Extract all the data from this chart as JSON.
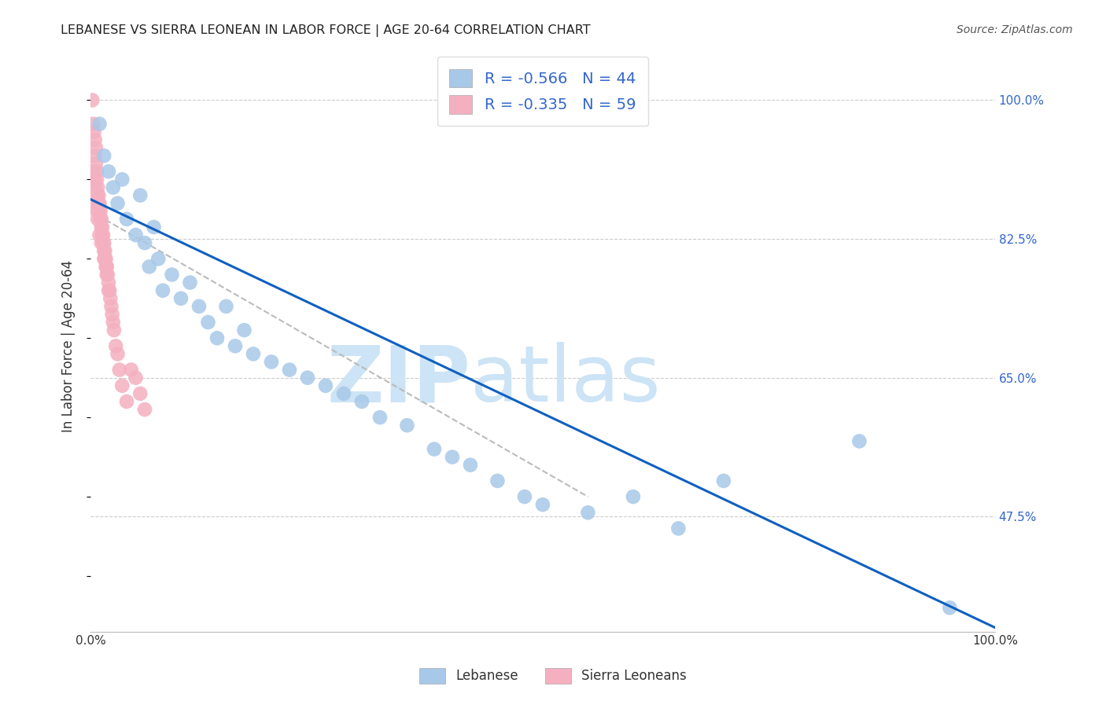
{
  "title": "LEBANESE VS SIERRA LEONEAN IN LABOR FORCE | AGE 20-64 CORRELATION CHART",
  "source": "Source: ZipAtlas.com",
  "ylabel": "In Labor Force | Age 20-64",
  "xlim": [
    0.0,
    1.0
  ],
  "ylim": [
    0.33,
    1.05
  ],
  "y_ticks_right": [
    0.475,
    0.65,
    0.825,
    1.0
  ],
  "y_tick_labels_right": [
    "47.5%",
    "65.0%",
    "82.5%",
    "100.0%"
  ],
  "grid_color": "#cccccc",
  "background_color": "#ffffff",
  "watermark_zip": "ZIP",
  "watermark_atlas": "atlas",
  "watermark_color": "#cce4f5",
  "legend_R_label1": "R = -0.566",
  "legend_N_label1": "N = 44",
  "legend_R_label2": "R = -0.335",
  "legend_N_label2": "N = 59",
  "legend_label1": "Lebanese",
  "legend_label2": "Sierra Leoneans",
  "color_blue": "#a8c8e8",
  "color_pink": "#f4b0c0",
  "color_blue_line": "#1060c0",
  "color_label": "#3366cc",
  "scatter_blue_x": [
    0.01,
    0.015,
    0.02,
    0.025,
    0.03,
    0.035,
    0.04,
    0.05,
    0.055,
    0.06,
    0.065,
    0.07,
    0.075,
    0.08,
    0.09,
    0.1,
    0.11,
    0.12,
    0.13,
    0.14,
    0.15,
    0.16,
    0.17,
    0.18,
    0.2,
    0.22,
    0.24,
    0.26,
    0.28,
    0.3,
    0.32,
    0.35,
    0.38,
    0.4,
    0.42,
    0.45,
    0.48,
    0.5,
    0.55,
    0.6,
    0.65,
    0.7,
    0.85,
    0.95
  ],
  "scatter_blue_y": [
    0.97,
    0.93,
    0.91,
    0.89,
    0.87,
    0.9,
    0.85,
    0.83,
    0.88,
    0.82,
    0.79,
    0.84,
    0.8,
    0.76,
    0.78,
    0.75,
    0.77,
    0.74,
    0.72,
    0.7,
    0.74,
    0.69,
    0.71,
    0.68,
    0.67,
    0.66,
    0.65,
    0.64,
    0.63,
    0.62,
    0.6,
    0.59,
    0.56,
    0.55,
    0.54,
    0.52,
    0.5,
    0.49,
    0.48,
    0.5,
    0.46,
    0.52,
    0.57,
    0.36
  ],
  "scatter_pink_x": [
    0.002,
    0.003,
    0.004,
    0.005,
    0.005,
    0.006,
    0.006,
    0.007,
    0.007,
    0.008,
    0.008,
    0.009,
    0.009,
    0.01,
    0.01,
    0.011,
    0.011,
    0.012,
    0.012,
    0.013,
    0.013,
    0.014,
    0.014,
    0.015,
    0.015,
    0.016,
    0.016,
    0.017,
    0.017,
    0.018,
    0.018,
    0.019,
    0.02,
    0.02,
    0.021,
    0.022,
    0.023,
    0.024,
    0.025,
    0.026,
    0.028,
    0.03,
    0.032,
    0.035,
    0.04,
    0.045,
    0.05,
    0.055,
    0.06,
    0.003,
    0.004,
    0.005,
    0.006,
    0.007,
    0.008,
    0.01,
    0.012,
    0.015,
    0.018
  ],
  "scatter_pink_y": [
    1.0,
    0.97,
    0.96,
    0.95,
    0.93,
    0.94,
    0.92,
    0.91,
    0.9,
    0.89,
    0.88,
    0.88,
    0.87,
    0.87,
    0.86,
    0.86,
    0.85,
    0.85,
    0.84,
    0.84,
    0.83,
    0.83,
    0.82,
    0.82,
    0.81,
    0.81,
    0.8,
    0.8,
    0.79,
    0.79,
    0.78,
    0.78,
    0.77,
    0.76,
    0.76,
    0.75,
    0.74,
    0.73,
    0.72,
    0.71,
    0.69,
    0.68,
    0.66,
    0.64,
    0.62,
    0.66,
    0.65,
    0.63,
    0.61,
    0.91,
    0.9,
    0.89,
    0.87,
    0.86,
    0.85,
    0.83,
    0.82,
    0.8,
    0.79
  ],
  "blue_line_x0": 0.0,
  "blue_line_y0": 0.875,
  "blue_line_x1": 1.0,
  "blue_line_y1": 0.335,
  "pink_line_x0": 0.0,
  "pink_line_y0": 0.86,
  "pink_line_x1": 0.55,
  "pink_line_y1": 0.5
}
